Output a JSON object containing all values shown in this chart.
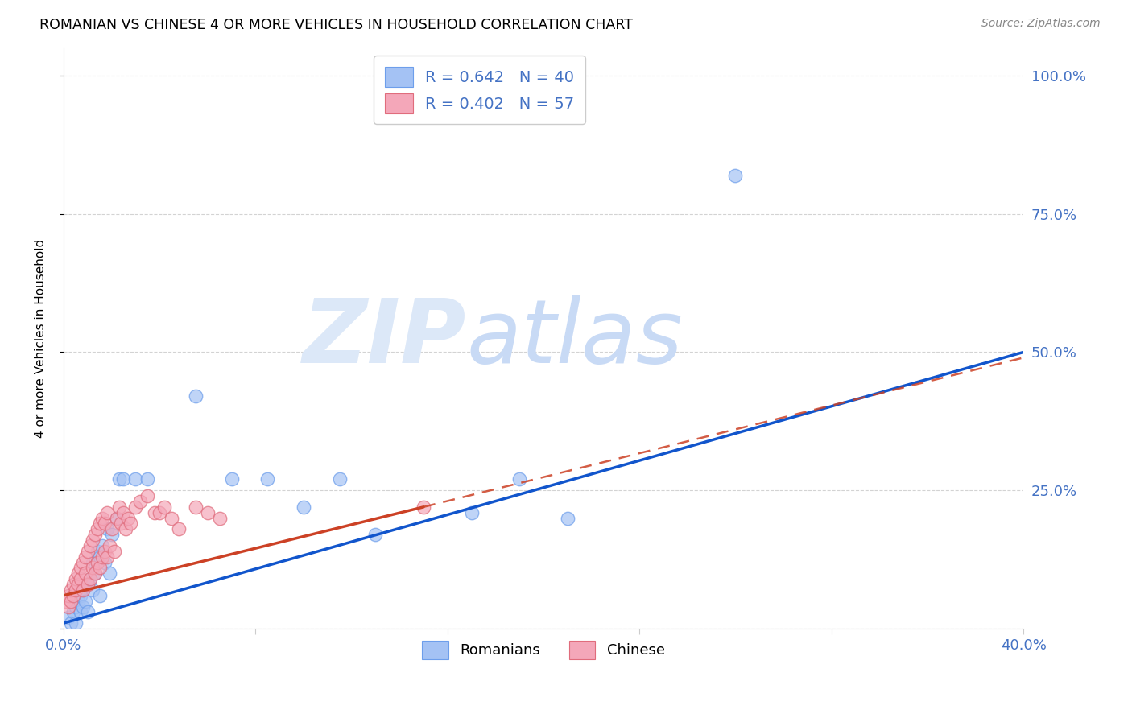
{
  "title": "ROMANIAN VS CHINESE 4 OR MORE VEHICLES IN HOUSEHOLD CORRELATION CHART",
  "source": "Source: ZipAtlas.com",
  "ylabel": "4 or more Vehicles in Household",
  "xlim": [
    0.0,
    0.4
  ],
  "ylim": [
    0.0,
    1.05
  ],
  "ytick_positions": [
    0.0,
    0.25,
    0.5,
    0.75,
    1.0
  ],
  "ytick_labels": [
    "",
    "25.0%",
    "50.0%",
    "75.0%",
    "100.0%"
  ],
  "xtick_positions": [
    0.0,
    0.08,
    0.16,
    0.24,
    0.32,
    0.4
  ],
  "xtick_labels": [
    "0.0%",
    "",
    "",
    "",
    "",
    "40.0%"
  ],
  "blue_color": "#a4c2f4",
  "pink_color": "#f4a7b9",
  "blue_edge_color": "#6d9eeb",
  "pink_edge_color": "#e06c7c",
  "blue_line_color": "#1155cc",
  "pink_line_color": "#cc4125",
  "grid_color": "#c9c9c9",
  "watermark_zip": "ZIP",
  "watermark_atlas": "atlas",
  "watermark_color": "#dce8f8",
  "tick_label_color": "#4472c4",
  "title_color": "#000000",
  "source_color": "#888888",
  "background_color": "#ffffff",
  "blue_scatter_x": [
    0.002,
    0.003,
    0.004,
    0.005,
    0.005,
    0.006,
    0.007,
    0.007,
    0.008,
    0.008,
    0.009,
    0.01,
    0.01,
    0.011,
    0.012,
    0.012,
    0.013,
    0.014,
    0.015,
    0.015,
    0.016,
    0.017,
    0.018,
    0.019,
    0.02,
    0.022,
    0.023,
    0.025,
    0.03,
    0.035,
    0.055,
    0.07,
    0.085,
    0.1,
    0.115,
    0.13,
    0.17,
    0.19,
    0.21,
    0.28
  ],
  "blue_scatter_y": [
    0.02,
    0.01,
    0.03,
    0.04,
    0.01,
    0.05,
    0.03,
    0.06,
    0.04,
    0.07,
    0.05,
    0.08,
    0.03,
    0.09,
    0.07,
    0.12,
    0.1,
    0.14,
    0.13,
    0.06,
    0.15,
    0.12,
    0.18,
    0.1,
    0.17,
    0.2,
    0.27,
    0.27,
    0.27,
    0.27,
    0.42,
    0.27,
    0.27,
    0.22,
    0.27,
    0.17,
    0.21,
    0.27,
    0.2,
    0.82
  ],
  "pink_scatter_x": [
    0.001,
    0.002,
    0.002,
    0.003,
    0.003,
    0.004,
    0.004,
    0.005,
    0.005,
    0.006,
    0.006,
    0.007,
    0.007,
    0.008,
    0.008,
    0.009,
    0.009,
    0.01,
    0.01,
    0.011,
    0.011,
    0.012,
    0.012,
    0.013,
    0.013,
    0.014,
    0.014,
    0.015,
    0.015,
    0.016,
    0.016,
    0.017,
    0.017,
    0.018,
    0.018,
    0.019,
    0.02,
    0.021,
    0.022,
    0.023,
    0.024,
    0.025,
    0.026,
    0.027,
    0.028,
    0.03,
    0.032,
    0.035,
    0.038,
    0.04,
    0.042,
    0.045,
    0.048,
    0.055,
    0.06,
    0.065,
    0.15
  ],
  "pink_scatter_y": [
    0.05,
    0.04,
    0.06,
    0.05,
    0.07,
    0.06,
    0.08,
    0.07,
    0.09,
    0.08,
    0.1,
    0.09,
    0.11,
    0.07,
    0.12,
    0.1,
    0.13,
    0.08,
    0.14,
    0.09,
    0.15,
    0.11,
    0.16,
    0.1,
    0.17,
    0.12,
    0.18,
    0.11,
    0.19,
    0.13,
    0.2,
    0.14,
    0.19,
    0.13,
    0.21,
    0.15,
    0.18,
    0.14,
    0.2,
    0.22,
    0.19,
    0.21,
    0.18,
    0.2,
    0.19,
    0.22,
    0.23,
    0.24,
    0.21,
    0.21,
    0.22,
    0.2,
    0.18,
    0.22,
    0.21,
    0.2,
    0.22
  ],
  "blue_line_x0": 0.0,
  "blue_line_y0": 0.01,
  "blue_line_x1": 0.4,
  "blue_line_y1": 0.5,
  "pink_line_solid_x0": 0.0,
  "pink_line_solid_y0": 0.06,
  "pink_line_solid_x1": 0.15,
  "pink_line_solid_y1": 0.22,
  "pink_line_dash_x0": 0.15,
  "pink_line_dash_y0": 0.22,
  "pink_line_dash_x1": 0.4,
  "pink_line_dash_y1": 0.49
}
